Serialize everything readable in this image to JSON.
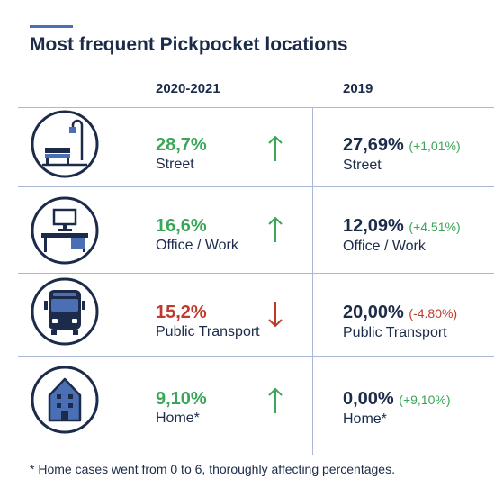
{
  "title": "Most frequent Pickpocket locations",
  "columns": [
    "2020-2021",
    "2019"
  ],
  "rows": [
    {
      "icon": "street-lamp-bench-icon",
      "label": "Street",
      "v2021": "28,7%",
      "v2019": "27,69%",
      "change": "(+1,01%)",
      "trend": "up"
    },
    {
      "icon": "office-desk-icon",
      "label": "Office / Work",
      "v2021": "16,6%",
      "v2019": "12,09%",
      "change": "(+4.51%)",
      "trend": "up"
    },
    {
      "icon": "bus-icon",
      "label": "Public Transport",
      "v2021": "15,2%",
      "v2019": "20,00%",
      "change": "(-4.80%)",
      "trend": "down"
    },
    {
      "icon": "house-icon",
      "label": "Home*",
      "v2021": "9,10%",
      "v2019": "0,00%",
      "change": "(+9,10%)",
      "trend": "up"
    }
  ],
  "footnote": "* Home cases went from 0 to 6, thoroughly affecting percentages.",
  "colors": {
    "navy": "#1c2b4a",
    "blue": "#4a6fb5",
    "green": "#3aa657",
    "red": "#c0392b",
    "grid": "#aab8d6"
  },
  "chart_data": {
    "type": "table",
    "title": "Most frequent Pickpocket locations",
    "columns": [
      "2020-2021",
      "2019"
    ],
    "categories": [
      "Street",
      "Office / Work",
      "Public Transport",
      "Home*"
    ],
    "series": [
      {
        "name": "2020-2021",
        "values": [
          28.7,
          16.6,
          15.2,
          9.1
        ]
      },
      {
        "name": "2019",
        "values": [
          27.69,
          12.09,
          20.0,
          0.0
        ]
      }
    ],
    "changes": [
      1.01,
      4.51,
      -4.8,
      9.1
    ]
  }
}
